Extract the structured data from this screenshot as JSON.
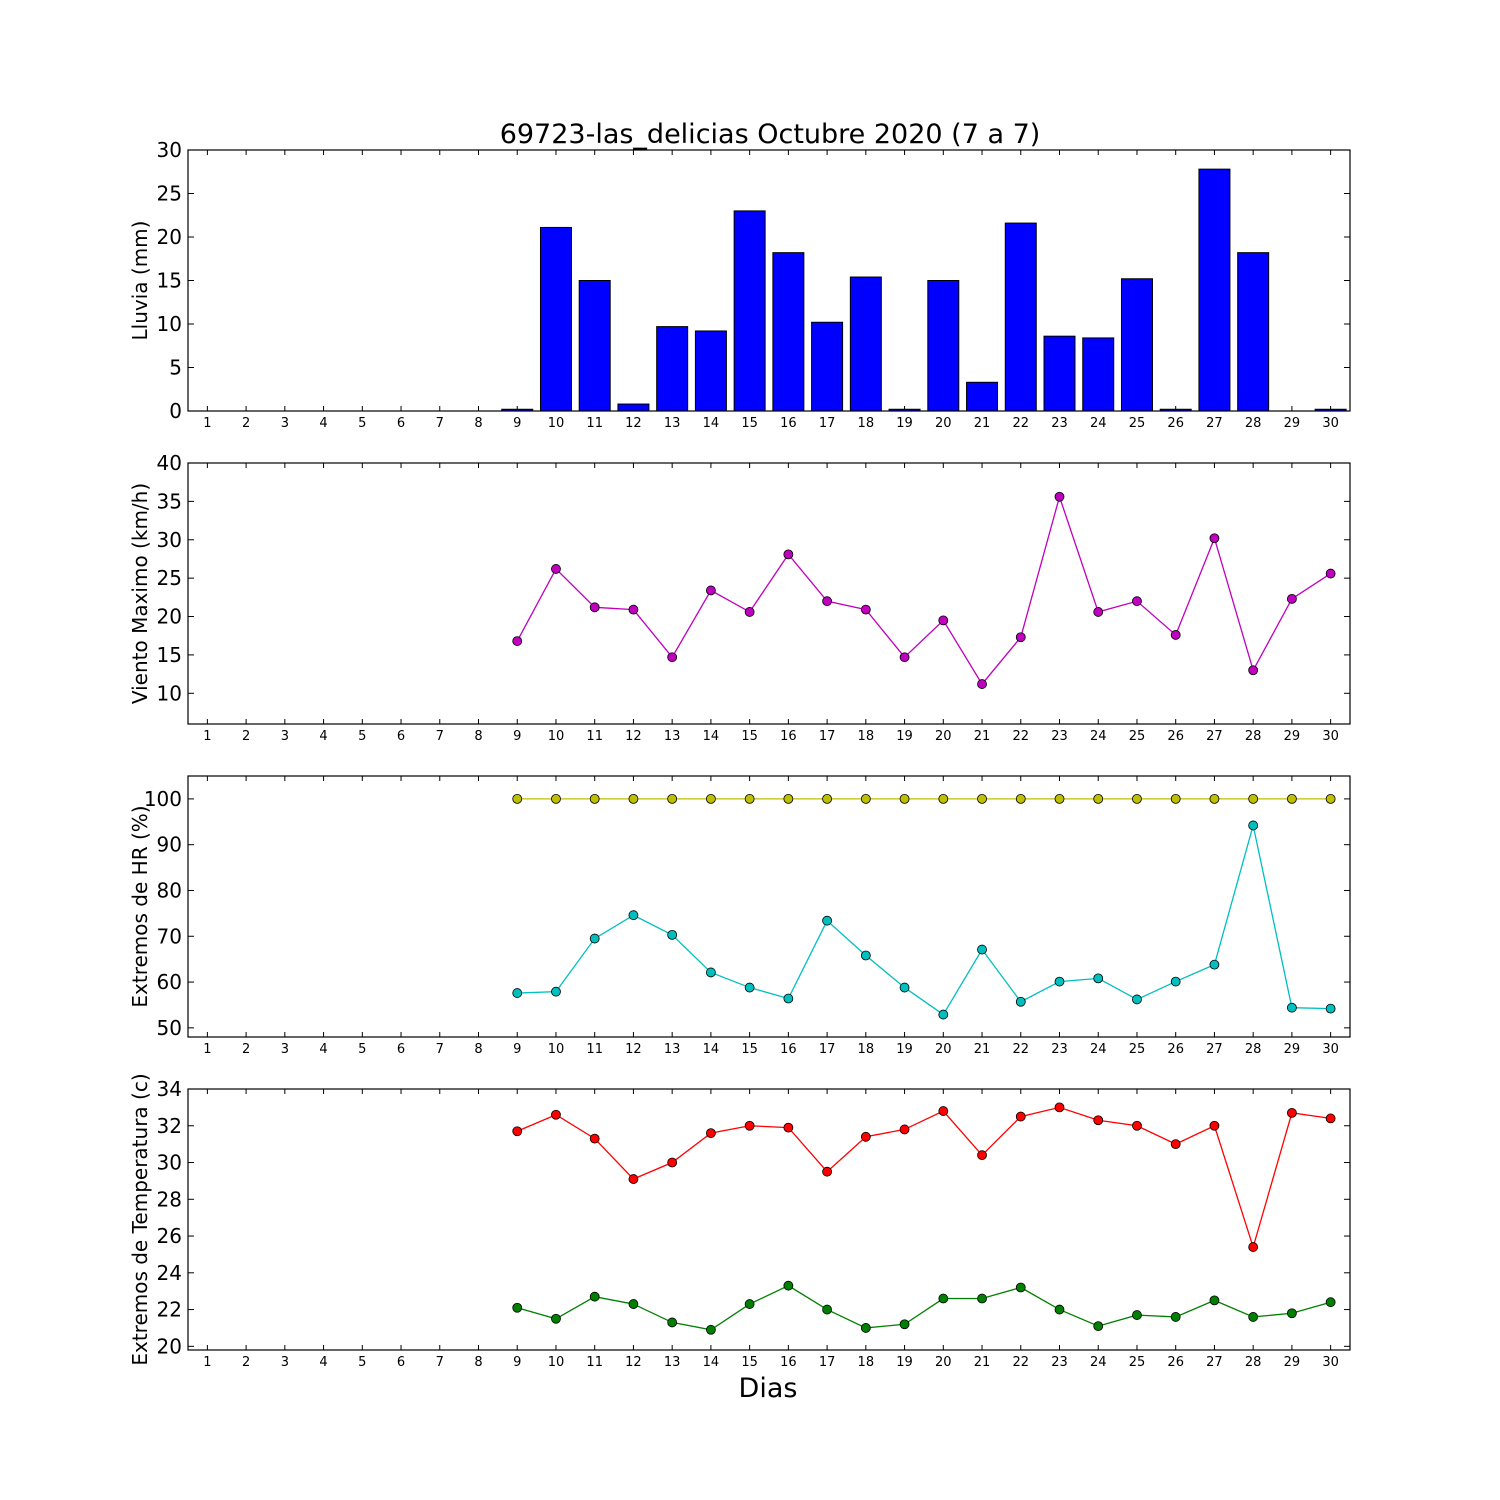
{
  "title": "69723-las_delicias Octubre 2020  (7 a 7)",
  "xlabel": "Dias",
  "days": [
    1,
    2,
    3,
    4,
    5,
    6,
    7,
    8,
    9,
    10,
    11,
    12,
    13,
    14,
    15,
    16,
    17,
    18,
    19,
    20,
    21,
    22,
    23,
    24,
    25,
    26,
    27,
    28,
    29,
    30
  ],
  "chart_data": [
    {
      "type": "bar",
      "ylabel": "Lluvia (mm)",
      "ylim": [
        0,
        30
      ],
      "yticks": [
        0,
        5,
        10,
        15,
        20,
        25,
        30
      ],
      "categories": [
        9,
        10,
        11,
        12,
        13,
        14,
        15,
        16,
        17,
        18,
        19,
        20,
        21,
        22,
        23,
        24,
        25,
        26,
        27,
        28,
        29,
        30
      ],
      "values": [
        0.2,
        21.1,
        15.0,
        0.8,
        9.7,
        9.2,
        23.0,
        18.2,
        10.2,
        15.4,
        0.2,
        15.0,
        3.3,
        21.6,
        8.6,
        8.4,
        15.2,
        0.2,
        27.8,
        18.2,
        0.0,
        0.2
      ],
      "colors": {
        "bar": "#0000ff"
      },
      "grid": false
    },
    {
      "type": "line",
      "ylabel": "Viento Maximo (km/h)",
      "ylim": [
        6,
        40
      ],
      "yticks": [
        10,
        15,
        20,
        25,
        30,
        35,
        40
      ],
      "series": [
        {
          "color": "#bf00bf",
          "x": [
            9,
            10,
            11,
            12,
            13,
            14,
            15,
            16,
            17,
            18,
            19,
            20,
            21,
            22,
            23,
            24,
            25,
            26,
            27,
            28,
            29,
            30
          ],
          "y": [
            16.8,
            26.2,
            21.2,
            20.9,
            14.7,
            23.4,
            20.6,
            28.1,
            22.0,
            20.9,
            14.7,
            19.5,
            11.2,
            17.3,
            35.6,
            20.6,
            22.0,
            17.6,
            30.2,
            13.0,
            22.3,
            25.6
          ]
        }
      ],
      "grid": false
    },
    {
      "type": "line",
      "ylabel": "Extremos de HR (%)",
      "ylim": [
        48,
        105
      ],
      "yticks": [
        50,
        60,
        70,
        80,
        90,
        100
      ],
      "series": [
        {
          "color": "#bfbf00",
          "x": [
            9,
            10,
            11,
            12,
            13,
            14,
            15,
            16,
            17,
            18,
            19,
            20,
            21,
            22,
            23,
            24,
            25,
            26,
            27,
            28,
            29,
            30
          ],
          "y": [
            100,
            100,
            100,
            100,
            100,
            100,
            100,
            100,
            100,
            100,
            100,
            100,
            100,
            100,
            100,
            100,
            100,
            100,
            100,
            100,
            100,
            100
          ]
        },
        {
          "color": "#00bfbf",
          "x": [
            9,
            10,
            11,
            12,
            13,
            14,
            15,
            16,
            17,
            18,
            19,
            20,
            21,
            22,
            23,
            24,
            25,
            26,
            27,
            28,
            29,
            30
          ],
          "y": [
            57.6,
            57.9,
            69.5,
            74.6,
            70.3,
            62.1,
            58.8,
            56.4,
            73.4,
            65.8,
            58.8,
            52.9,
            67.1,
            55.7,
            60.1,
            60.8,
            56.2,
            60.1,
            63.8,
            94.2,
            54.4,
            54.2
          ]
        }
      ],
      "grid": false
    },
    {
      "type": "line",
      "ylabel": "Extremos de Temperatura (c)",
      "ylim": [
        19.8,
        34
      ],
      "yticks": [
        20,
        22,
        24,
        26,
        28,
        30,
        32,
        34
      ],
      "series": [
        {
          "color": "#ff0000",
          "x": [
            9,
            10,
            11,
            12,
            13,
            14,
            15,
            16,
            17,
            18,
            19,
            20,
            21,
            22,
            23,
            24,
            25,
            26,
            27,
            28,
            29,
            30
          ],
          "y": [
            31.7,
            32.6,
            31.3,
            29.1,
            30.0,
            31.6,
            32.0,
            31.9,
            29.5,
            31.4,
            31.8,
            32.8,
            30.4,
            32.5,
            33.0,
            32.3,
            32.0,
            31.0,
            32.0,
            25.4,
            32.7,
            32.4
          ]
        },
        {
          "color": "#008000",
          "x": [
            9,
            10,
            11,
            12,
            13,
            14,
            15,
            16,
            17,
            18,
            19,
            20,
            21,
            22,
            23,
            24,
            25,
            26,
            27,
            28,
            29,
            30
          ],
          "y": [
            22.1,
            21.5,
            22.7,
            22.3,
            21.3,
            20.9,
            22.3,
            23.3,
            22.0,
            21.0,
            21.2,
            22.6,
            22.6,
            23.2,
            22.0,
            21.1,
            21.7,
            21.6,
            22.5,
            21.6,
            21.8,
            22.4
          ]
        }
      ],
      "grid": false
    }
  ]
}
